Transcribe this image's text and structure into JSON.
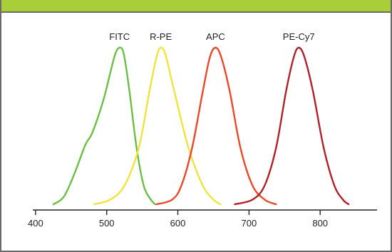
{
  "chart_data": {
    "type": "line",
    "title": "",
    "xlabel": "",
    "ylabel": "",
    "xlim": [
      360,
      890
    ],
    "ylim": [
      0,
      1
    ],
    "x_ticks": [
      400,
      500,
      600,
      700,
      800
    ],
    "x_tick_labels": [
      "400",
      "500",
      "600",
      "700",
      "800"
    ],
    "grid": false,
    "legend": "none",
    "series": [
      {
        "name": "FITC",
        "color": "#6cbe45",
        "points": [
          [
            425,
            0.0
          ],
          [
            440,
            0.05
          ],
          [
            455,
            0.2
          ],
          [
            470,
            0.38
          ],
          [
            480,
            0.46
          ],
          [
            495,
            0.66
          ],
          [
            505,
            0.84
          ],
          [
            512,
            0.96
          ],
          [
            518,
            1.0
          ],
          [
            524,
            0.96
          ],
          [
            532,
            0.72
          ],
          [
            542,
            0.36
          ],
          [
            552,
            0.12
          ],
          [
            562,
            0.03
          ],
          [
            568,
            0.0
          ]
        ]
      },
      {
        "name": "R-PE",
        "color": "#f2e33c",
        "points": [
          [
            482,
            0.0
          ],
          [
            505,
            0.03
          ],
          [
            525,
            0.12
          ],
          [
            545,
            0.36
          ],
          [
            560,
            0.72
          ],
          [
            570,
            0.94
          ],
          [
            576,
            1.0
          ],
          [
            583,
            0.95
          ],
          [
            595,
            0.72
          ],
          [
            615,
            0.36
          ],
          [
            635,
            0.12
          ],
          [
            650,
            0.03
          ],
          [
            660,
            0.0
          ]
        ]
      },
      {
        "name": "APC",
        "color": "#e8492b",
        "points": [
          [
            570,
            0.0
          ],
          [
            592,
            0.03
          ],
          [
            605,
            0.12
          ],
          [
            620,
            0.36
          ],
          [
            635,
            0.72
          ],
          [
            645,
            0.94
          ],
          [
            653,
            1.0
          ],
          [
            661,
            0.94
          ],
          [
            673,
            0.72
          ],
          [
            688,
            0.36
          ],
          [
            705,
            0.12
          ],
          [
            722,
            0.03
          ],
          [
            738,
            0.0
          ]
        ]
      },
      {
        "name": "PE-Cy7",
        "color": "#b0222a",
        "points": [
          [
            680,
            0.0
          ],
          [
            705,
            0.03
          ],
          [
            722,
            0.12
          ],
          [
            738,
            0.36
          ],
          [
            752,
            0.72
          ],
          [
            763,
            0.94
          ],
          [
            770,
            1.0
          ],
          [
            778,
            0.94
          ],
          [
            790,
            0.72
          ],
          [
            805,
            0.36
          ],
          [
            820,
            0.12
          ],
          [
            832,
            0.03
          ],
          [
            840,
            0.0
          ]
        ]
      }
    ]
  }
}
